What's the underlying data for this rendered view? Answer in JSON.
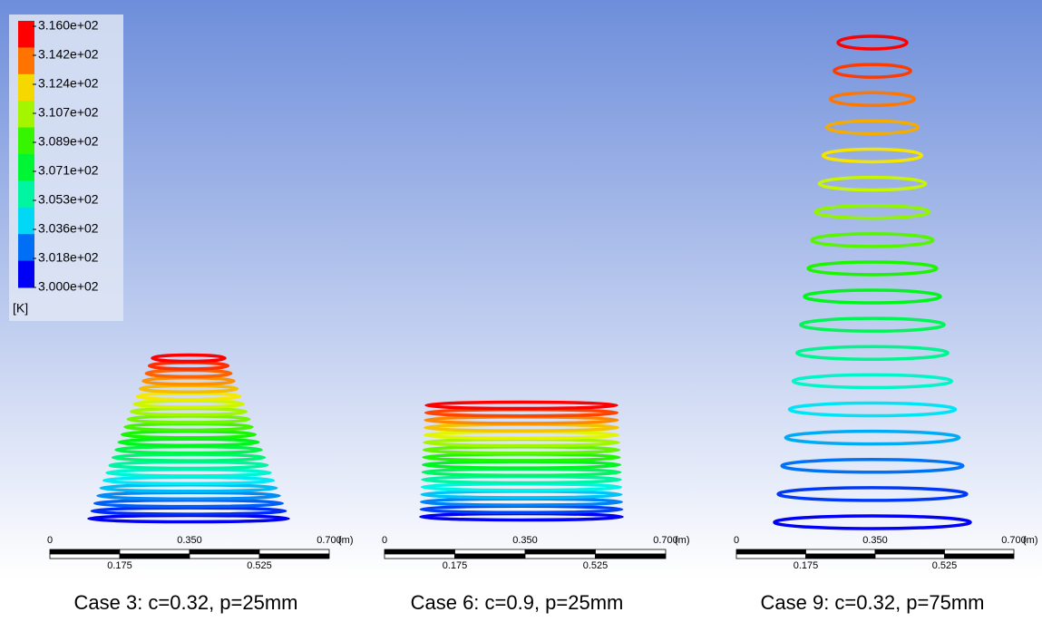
{
  "legend": {
    "labels": [
      "3.160e+02",
      "3.142e+02",
      "3.124e+02",
      "3.107e+02",
      "3.089e+02",
      "3.071e+02",
      "3.053e+02",
      "3.036e+02",
      "3.018e+02",
      "3.000e+02"
    ],
    "unit": "[K]"
  },
  "panels": [
    {
      "scale": {
        "top_labels": [
          "0",
          "0.350",
          "0.700"
        ],
        "unit": "(m)",
        "bottom_labels": [
          "0.175",
          "0.525"
        ]
      },
      "caption": "Case 3: c=0.32, p=25mm"
    },
    {
      "scale": {
        "top_labels": [
          "0",
          "0.350",
          "0.700"
        ],
        "unit": "(m)",
        "bottom_labels": [
          "0.175",
          "0.525"
        ]
      },
      "caption": "Case 6: c=0.9, p=25mm"
    },
    {
      "scale": {
        "top_labels": [
          "0",
          "0.350",
          "0.700"
        ],
        "unit": "(m)",
        "bottom_labels": [
          "0.175",
          "0.525"
        ]
      },
      "caption": "Case 9: c=0.32, p=75mm"
    }
  ]
}
